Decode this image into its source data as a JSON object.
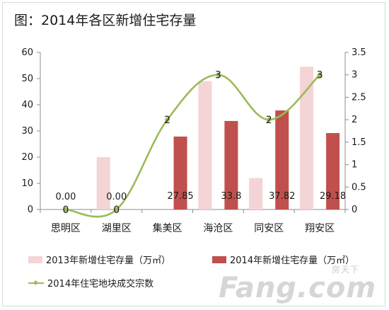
{
  "title": "图：2014年各区新增住宅存量",
  "chart_data": {
    "type": "bar",
    "categories": [
      "思明区",
      "湖里区",
      "集美区",
      "海沧区",
      "同安区",
      "翔安区"
    ],
    "series": [
      {
        "name": "2013年新增住宅存量（万㎡）",
        "type": "bar",
        "axis": "left",
        "values": [
          0,
          20,
          0,
          49,
          12,
          54.5
        ],
        "color": "#f4d4d4"
      },
      {
        "name": "2014年新增住宅存量（万㎡）",
        "type": "bar",
        "axis": "left",
        "values": [
          0,
          0,
          27.85,
          33.8,
          37.82,
          29.18
        ],
        "color": "#c0504d",
        "data_labels": [
          "0.00",
          "0.00",
          "27.85",
          "33.8",
          "37.82",
          "29.18"
        ]
      },
      {
        "name": "2014年住宅地块成交宗数",
        "type": "line",
        "axis": "right",
        "values": [
          0,
          0,
          2,
          3,
          2,
          3
        ],
        "color": "#9bbb59",
        "data_labels": [
          "0",
          "0",
          "2",
          "3",
          "2",
          "3"
        ]
      }
    ],
    "left_axis": {
      "ylim": [
        0,
        60
      ],
      "ticks": [
        "0",
        "10",
        "20",
        "30",
        "40",
        "50",
        "60"
      ]
    },
    "right_axis": {
      "ylim": [
        0,
        3.5
      ],
      "ticks": [
        "0",
        "0.5",
        "1",
        "1.5",
        "2",
        "2.5",
        "3",
        "3.5"
      ]
    },
    "grid": false,
    "legend_position": "bottom"
  },
  "watermark": {
    "text": "Fang.com",
    "sub": "房天下"
  }
}
